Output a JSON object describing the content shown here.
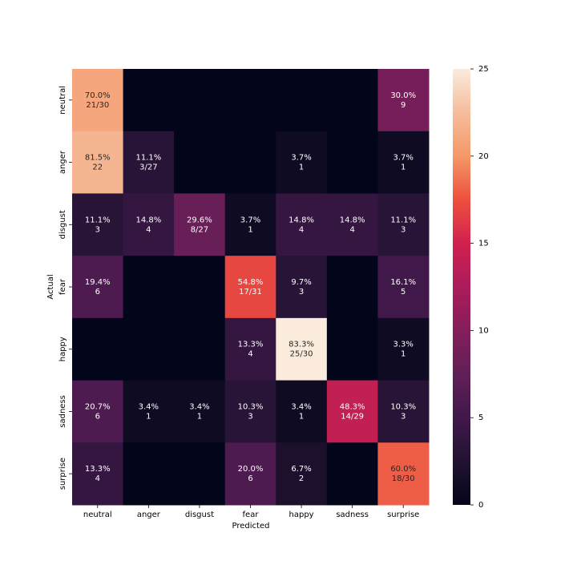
{
  "chart_data": {
    "type": "heatmap",
    "x_label": "Predicted",
    "y_label": "Actual",
    "x_categories": [
      "neutral",
      "anger",
      "disgust",
      "fear",
      "happy",
      "sadness",
      "surprise"
    ],
    "y_categories": [
      "neutral",
      "anger",
      "disgust",
      "fear",
      "happy",
      "sadness",
      "surprise"
    ],
    "values": [
      [
        21,
        0,
        0,
        0,
        0,
        0,
        9
      ],
      [
        22,
        3,
        0,
        0,
        1,
        0,
        1
      ],
      [
        3,
        4,
        8,
        1,
        4,
        4,
        3
      ],
      [
        6,
        0,
        0,
        17,
        3,
        0,
        5
      ],
      [
        0,
        0,
        0,
        4,
        25,
        0,
        1
      ],
      [
        6,
        1,
        1,
        3,
        1,
        14,
        3
      ],
      [
        4,
        0,
        0,
        6,
        2,
        0,
        18
      ]
    ],
    "value_labels": [
      [
        [
          "70.0%",
          "21/30"
        ],
        null,
        null,
        null,
        null,
        null,
        [
          "30.0%",
          "9"
        ]
      ],
      [
        [
          "81.5%",
          "22"
        ],
        [
          "11.1%",
          "3/27"
        ],
        null,
        null,
        [
          "3.7%",
          "1"
        ],
        null,
        [
          "3.7%",
          "1"
        ]
      ],
      [
        [
          "11.1%",
          "3"
        ],
        [
          "14.8%",
          "4"
        ],
        [
          "29.6%",
          "8/27"
        ],
        [
          "3.7%",
          "1"
        ],
        [
          "14.8%",
          "4"
        ],
        [
          "14.8%",
          "4"
        ],
        [
          "11.1%",
          "3"
        ]
      ],
      [
        [
          "19.4%",
          "6"
        ],
        null,
        null,
        [
          "54.8%",
          "17/31"
        ],
        [
          "9.7%",
          "3"
        ],
        null,
        [
          "16.1%",
          "5"
        ]
      ],
      [
        null,
        null,
        null,
        [
          "13.3%",
          "4"
        ],
        [
          "83.3%",
          "25/30"
        ],
        null,
        [
          "3.3%",
          "1"
        ]
      ],
      [
        [
          "20.7%",
          "6"
        ],
        [
          "3.4%",
          "1"
        ],
        [
          "3.4%",
          "1"
        ],
        [
          "10.3%",
          "3"
        ],
        [
          "3.4%",
          "1"
        ],
        [
          "48.3%",
          "14/29"
        ],
        [
          "10.3%",
          "3"
        ]
      ],
      [
        [
          "13.3%",
          "4"
        ],
        null,
        null,
        [
          "20.0%",
          "6"
        ],
        [
          "6.7%",
          "2"
        ],
        null,
        [
          "60.0%",
          "18/30"
        ]
      ]
    ],
    "colorscale": [
      "#03051a",
      "#221331",
      "#40184a",
      "#611f57",
      "#841e5a",
      "#ab1c5a",
      "#d1214f",
      "#ed503e",
      "#f49867",
      "#f6bc9b",
      "#faebdd"
    ],
    "clim": [
      0,
      25
    ],
    "cticks": [
      0,
      5,
      10,
      15,
      20,
      25
    ]
  }
}
